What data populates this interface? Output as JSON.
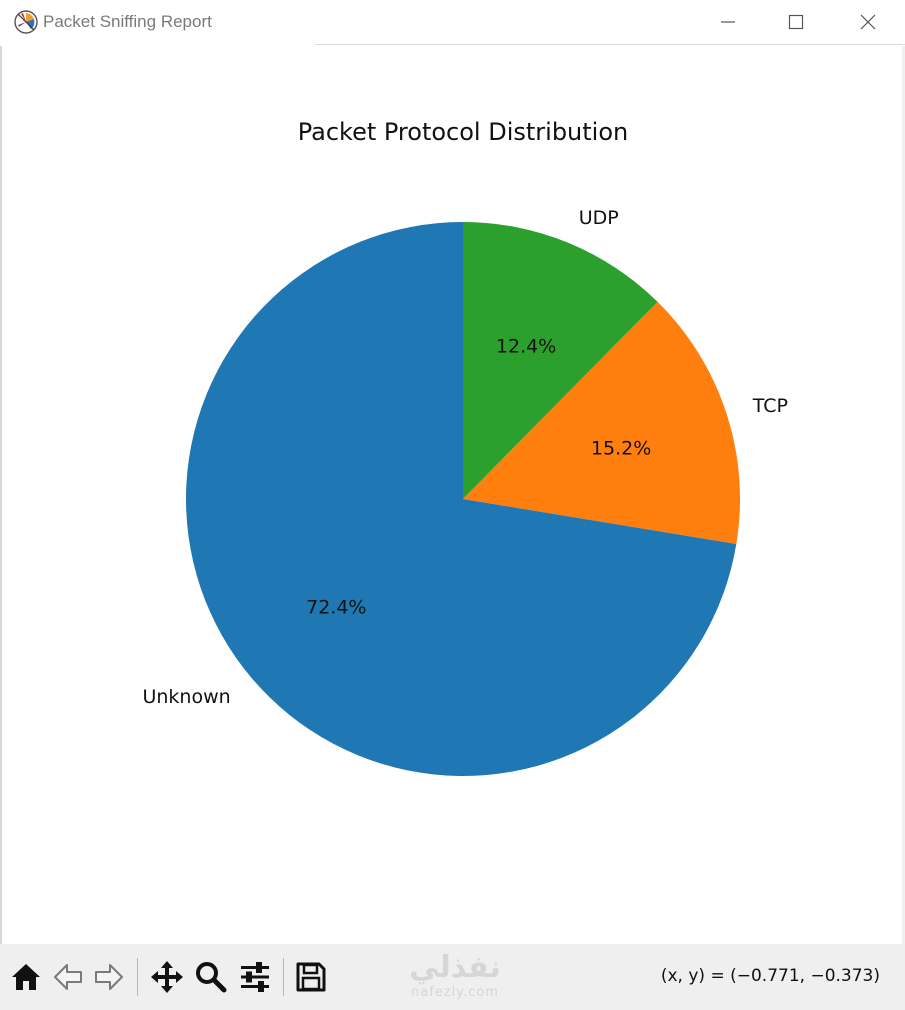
{
  "window": {
    "title": "Packet Sniffing Report"
  },
  "colors": {
    "Unknown": "#1f77b4",
    "TCP": "#ff7f0e",
    "UDP": "#2ca02c"
  },
  "chart_data": {
    "type": "pie",
    "title": "Packet Protocol Distribution",
    "labels": [
      "UDP",
      "TCP",
      "Unknown"
    ],
    "values": [
      12.4,
      15.2,
      72.4
    ],
    "autopct": [
      "12.4%",
      "15.2%",
      "72.4%"
    ],
    "colors": [
      "#2ca02c",
      "#ff7f0e",
      "#1f77b4"
    ],
    "start_angle_deg": 90,
    "direction": "clockwise"
  },
  "toolbar": {
    "items": [
      {
        "name": "home-button",
        "icon": "home-icon"
      },
      {
        "name": "back-button",
        "icon": "arrow-left-icon"
      },
      {
        "name": "forward-button",
        "icon": "arrow-right-icon"
      },
      {
        "name": "pan-button",
        "icon": "move-icon"
      },
      {
        "name": "zoom-button",
        "icon": "magnifier-icon"
      },
      {
        "name": "configure-subplots-button",
        "icon": "sliders-icon"
      },
      {
        "name": "save-button",
        "icon": "floppy-disk-icon"
      }
    ],
    "coordinates": "(x, y) = (−0.771, −0.373)"
  },
  "watermark": {
    "arabic": "نفذلي",
    "latin": "nafezly.com"
  }
}
